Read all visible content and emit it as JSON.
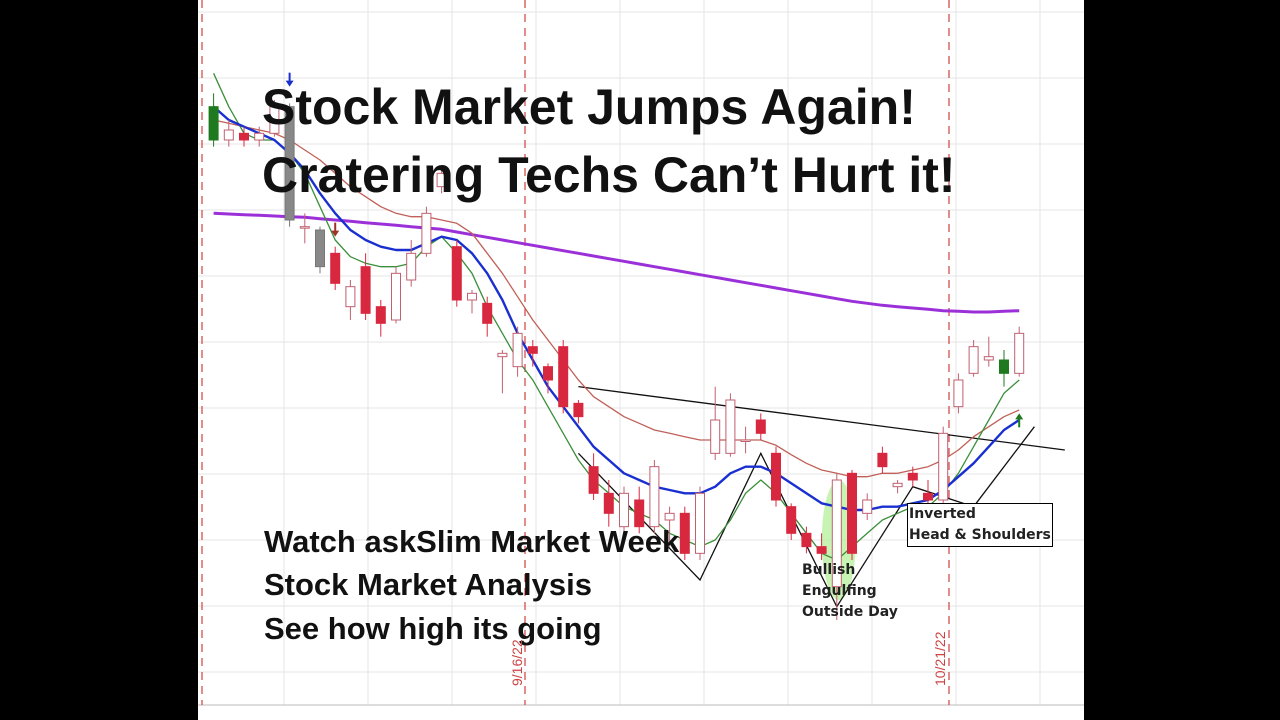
{
  "headline": {
    "line1": "Stock Market Jumps Again!",
    "line2": "Cratering Techs Can’t Hurt it!"
  },
  "promo": {
    "line1": "Watch askSlim Market Week",
    "line2": "Stock Market Analysis",
    "line3": "See how high its going"
  },
  "annotations": {
    "bullish_engulfing": "Bullish\nEngulfing\nOutside Day",
    "inverted_hs": "Inverted\nHead & Shoulders"
  },
  "colors": {
    "up_candle": "#ffffff",
    "down_candle": "#d8283f",
    "ma_fast": "#3a8f3a",
    "ma_mid": "#1a2fd0",
    "ma_slow": "#c06058",
    "ma_long": "#9b30d9",
    "event_line": "#d04040",
    "highlight": "#b9f0a0"
  },
  "chart_data": {
    "type": "candlestick",
    "date_labels": [
      "9/16/22",
      "10/21/22"
    ],
    "candles": [
      {
        "o": 3940,
        "h": 3960,
        "l": 3880,
        "c": 3890,
        "color": "green"
      },
      {
        "o": 3890,
        "h": 3920,
        "l": 3880,
        "c": 3905,
        "color": "up"
      },
      {
        "o": 3900,
        "h": 3910,
        "l": 3880,
        "c": 3890,
        "color": "down"
      },
      {
        "o": 3890,
        "h": 3910,
        "l": 3880,
        "c": 3900,
        "color": "up"
      },
      {
        "o": 3900,
        "h": 3950,
        "l": 3895,
        "c": 3940,
        "color": "up"
      },
      {
        "o": 3940,
        "h": 3945,
        "l": 3760,
        "c": 3770,
        "color": "gray"
      },
      {
        "o": 3760,
        "h": 3780,
        "l": 3735,
        "c": 3760,
        "color": "up"
      },
      {
        "o": 3755,
        "h": 3760,
        "l": 3690,
        "c": 3700,
        "color": "gray"
      },
      {
        "o": 3720,
        "h": 3730,
        "l": 3665,
        "c": 3675,
        "color": "down"
      },
      {
        "o": 3640,
        "h": 3680,
        "l": 3620,
        "c": 3670,
        "color": "up"
      },
      {
        "o": 3700,
        "h": 3720,
        "l": 3620,
        "c": 3630,
        "color": "down"
      },
      {
        "o": 3640,
        "h": 3650,
        "l": 3595,
        "c": 3615,
        "color": "down"
      },
      {
        "o": 3620,
        "h": 3700,
        "l": 3615,
        "c": 3690,
        "color": "up"
      },
      {
        "o": 3680,
        "h": 3740,
        "l": 3670,
        "c": 3720,
        "color": "up"
      },
      {
        "o": 3720,
        "h": 3790,
        "l": 3715,
        "c": 3780,
        "color": "up"
      },
      {
        "o": 3820,
        "h": 3850,
        "l": 3810,
        "c": 3840,
        "color": "up"
      },
      {
        "o": 3730,
        "h": 3740,
        "l": 3640,
        "c": 3650,
        "color": "down"
      },
      {
        "o": 3650,
        "h": 3665,
        "l": 3630,
        "c": 3660,
        "color": "up"
      },
      {
        "o": 3645,
        "h": 3655,
        "l": 3595,
        "c": 3615,
        "color": "down"
      },
      {
        "o": 3570,
        "h": 3575,
        "l": 3510,
        "c": 3565,
        "color": "up"
      },
      {
        "o": 3550,
        "h": 3610,
        "l": 3535,
        "c": 3600,
        "color": "up"
      },
      {
        "o": 3580,
        "h": 3590,
        "l": 3550,
        "c": 3570,
        "color": "down"
      },
      {
        "o": 3550,
        "h": 3555,
        "l": 3510,
        "c": 3530,
        "color": "down"
      },
      {
        "o": 3580,
        "h": 3590,
        "l": 3480,
        "c": 3490,
        "color": "down"
      },
      {
        "o": 3495,
        "h": 3500,
        "l": 3465,
        "c": 3475,
        "color": "down"
      },
      {
        "o": 3400,
        "h": 3420,
        "l": 3350,
        "c": 3360,
        "color": "down"
      },
      {
        "o": 3360,
        "h": 3380,
        "l": 3310,
        "c": 3330,
        "color": "down"
      },
      {
        "o": 3310,
        "h": 3370,
        "l": 3295,
        "c": 3360,
        "color": "up"
      },
      {
        "o": 3350,
        "h": 3370,
        "l": 3300,
        "c": 3310,
        "color": "down"
      },
      {
        "o": 3310,
        "h": 3410,
        "l": 3300,
        "c": 3400,
        "color": "up"
      },
      {
        "o": 3320,
        "h": 3340,
        "l": 3280,
        "c": 3330,
        "color": "up"
      },
      {
        "o": 3330,
        "h": 3340,
        "l": 3260,
        "c": 3270,
        "color": "down"
      },
      {
        "o": 3270,
        "h": 3370,
        "l": 3260,
        "c": 3360,
        "color": "up"
      },
      {
        "o": 3470,
        "h": 3520,
        "l": 3410,
        "c": 3420,
        "color": "up"
      },
      {
        "o": 3420,
        "h": 3510,
        "l": 3415,
        "c": 3500,
        "color": "up"
      },
      {
        "o": 3440,
        "h": 3460,
        "l": 3420,
        "c": 3440,
        "color": "up"
      },
      {
        "o": 3470,
        "h": 3480,
        "l": 3440,
        "c": 3450,
        "color": "down"
      },
      {
        "o": 3420,
        "h": 3430,
        "l": 3340,
        "c": 3350,
        "color": "down"
      },
      {
        "o": 3340,
        "h": 3345,
        "l": 3290,
        "c": 3300,
        "color": "down"
      },
      {
        "o": 3300,
        "h": 3310,
        "l": 3270,
        "c": 3280,
        "color": "down"
      },
      {
        "o": 3280,
        "h": 3300,
        "l": 3260,
        "c": 3270,
        "color": "down"
      },
      {
        "o": 3220,
        "h": 3390,
        "l": 3170,
        "c": 3380,
        "color": "up"
      },
      {
        "o": 3390,
        "h": 3395,
        "l": 3260,
        "c": 3270,
        "color": "down"
      },
      {
        "o": 3330,
        "h": 3360,
        "l": 3320,
        "c": 3350,
        "color": "up"
      },
      {
        "o": 3400,
        "h": 3430,
        "l": 3390,
        "c": 3420,
        "color": "down"
      },
      {
        "o": 3370,
        "h": 3380,
        "l": 3360,
        "c": 3375,
        "color": "up"
      },
      {
        "o": 3390,
        "h": 3400,
        "l": 3370,
        "c": 3380,
        "color": "down"
      },
      {
        "o": 3360,
        "h": 3380,
        "l": 3340,
        "c": 3350,
        "color": "down"
      },
      {
        "o": 3350,
        "h": 3460,
        "l": 3340,
        "c": 3450,
        "color": "up"
      },
      {
        "o": 3490,
        "h": 3540,
        "l": 3480,
        "c": 3530,
        "color": "up"
      },
      {
        "o": 3540,
        "h": 3590,
        "l": 3535,
        "c": 3580,
        "color": "up"
      },
      {
        "o": 3560,
        "h": 3595,
        "l": 3550,
        "c": 3565,
        "color": "up"
      },
      {
        "o": 3560,
        "h": 3575,
        "l": 3520,
        "c": 3540,
        "color": "green"
      },
      {
        "o": 3540,
        "h": 3610,
        "l": 3535,
        "c": 3600,
        "color": "up"
      }
    ],
    "ma_fast": [
      3990,
      3940,
      3900,
      3890,
      3890,
      3870,
      3840,
      3790,
      3740,
      3715,
      3705,
      3700,
      3700,
      3705,
      3730,
      3745,
      3720,
      3690,
      3640,
      3600,
      3560,
      3530,
      3490,
      3450,
      3410,
      3380,
      3360,
      3340,
      3330,
      3320,
      3300,
      3290,
      3280,
      3290,
      3320,
      3360,
      3380,
      3360,
      3330,
      3300,
      3270,
      3260,
      3280,
      3300,
      3320,
      3330,
      3340,
      3340,
      3360,
      3390,
      3430,
      3470,
      3510,
      3530
    ],
    "ma_mid": [
      3940,
      3920,
      3910,
      3900,
      3890,
      3870,
      3845,
      3810,
      3780,
      3755,
      3740,
      3730,
      3725,
      3725,
      3735,
      3745,
      3740,
      3720,
      3690,
      3650,
      3600,
      3560,
      3520,
      3490,
      3460,
      3430,
      3410,
      3390,
      3380,
      3370,
      3365,
      3360,
      3360,
      3370,
      3390,
      3400,
      3400,
      3390,
      3375,
      3360,
      3345,
      3340,
      3335,
      3335,
      3340,
      3340,
      3345,
      3350,
      3365,
      3385,
      3405,
      3430,
      3455,
      3470
    ],
    "ma_slow": [
      3920,
      3915,
      3910,
      3905,
      3900,
      3890,
      3875,
      3860,
      3840,
      3820,
      3805,
      3790,
      3780,
      3775,
      3775,
      3770,
      3765,
      3750,
      3720,
      3690,
      3655,
      3620,
      3590,
      3560,
      3530,
      3505,
      3490,
      3475,
      3465,
      3455,
      3450,
      3445,
      3440,
      3440,
      3440,
      3440,
      3440,
      3432,
      3418,
      3405,
      3395,
      3390,
      3385,
      3385,
      3390,
      3390,
      3395,
      3400,
      3410,
      3425,
      3445,
      3460,
      3475,
      3485
    ],
    "ma_long": [
      3780,
      3779,
      3778,
      3777,
      3776,
      3775,
      3774,
      3772,
      3770,
      3768,
      3766,
      3764,
      3762,
      3760,
      3758,
      3756,
      3752,
      3748,
      3744,
      3740,
      3736,
      3732,
      3728,
      3724,
      3720,
      3716,
      3712,
      3708,
      3704,
      3700,
      3696,
      3692,
      3688,
      3684,
      3680,
      3676,
      3672,
      3668,
      3664,
      3660,
      3656,
      3652,
      3648,
      3645,
      3642,
      3640,
      3638,
      3636,
      3634,
      3633,
      3632,
      3632,
      3633,
      3634
    ],
    "ylim": [
      3050,
      4100
    ],
    "grid": true,
    "event_markers": [
      "9/16/22",
      "10/21/22"
    ]
  }
}
